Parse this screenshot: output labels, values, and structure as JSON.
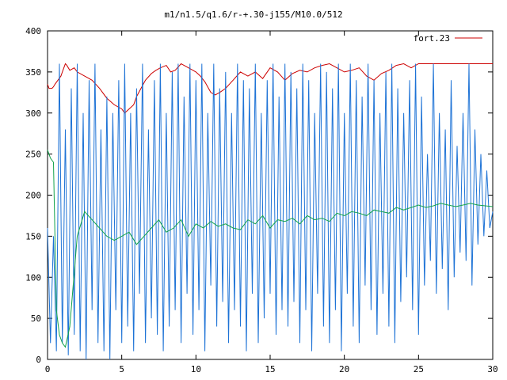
{
  "chart_data": {
    "type": "line",
    "title": "m1/n1.5/q1.6/r-+.30-j155/M10.0/512",
    "xlabel": "",
    "ylabel": "",
    "xlim": [
      0,
      30
    ],
    "ylim": [
      0,
      400
    ],
    "x_ticks": [
      "0",
      "5",
      "10",
      "15",
      "20",
      "25",
      "30"
    ],
    "y_ticks": [
      "0",
      "50",
      "100",
      "150",
      "200",
      "250",
      "300",
      "350",
      "400"
    ],
    "grid": false,
    "legend_position": "top-right",
    "series": [
      {
        "name": "fort.23",
        "color": "#cc0000",
        "x": [
          0,
          0.1,
          0.2,
          0.3,
          0.4,
          0.5,
          0.7,
          0.9,
          1.0,
          1.1,
          1.2,
          1.3,
          1.5,
          1.8,
          2.0,
          2.5,
          3.0,
          3.5,
          4.0,
          4.5,
          5.0,
          5.2,
          5.5,
          5.8,
          6.0,
          6.3,
          6.6,
          7.0,
          7.3,
          7.6,
          8.0,
          8.3,
          8.6,
          9.0,
          9.2,
          9.5,
          9.8,
          10.0,
          10.3,
          10.6,
          11.0,
          11.3,
          11.6,
          12.0,
          12.5,
          13.0,
          13.5,
          14.0,
          14.5,
          15.0,
          15.5,
          16.0,
          16.5,
          17.0,
          17.5,
          18.0,
          18.5,
          19.0,
          19.5,
          20.0,
          20.5,
          21.0,
          21.5,
          22.0,
          22.5,
          23.0,
          23.5,
          24.0,
          24.5,
          25.0,
          25.5,
          26.0,
          26.5,
          27.0,
          27.5,
          28.0,
          28.5,
          29.0,
          29.5,
          30.0
        ],
        "y": [
          335,
          330,
          330,
          330,
          332,
          335,
          340,
          345,
          350,
          355,
          360,
          358,
          352,
          355,
          350,
          345,
          340,
          330,
          318,
          310,
          305,
          300,
          305,
          310,
          320,
          330,
          340,
          348,
          352,
          355,
          358,
          350,
          352,
          360,
          358,
          355,
          352,
          350,
          345,
          338,
          325,
          322,
          325,
          330,
          340,
          350,
          345,
          350,
          342,
          355,
          350,
          340,
          348,
          352,
          350,
          355,
          358,
          360,
          355,
          350,
          352,
          355,
          345,
          340,
          348,
          352,
          358,
          360,
          355,
          360,
          360,
          360,
          360,
          360,
          360,
          360,
          360,
          360,
          360,
          360
        ]
      },
      {
        "name": "",
        "color": "#1e73d6",
        "x": [
          0,
          0.2,
          0.4,
          0.6,
          0.8,
          1.0,
          1.2,
          1.4,
          1.6,
          1.8,
          2.0,
          2.2,
          2.4,
          2.6,
          2.8,
          3.0,
          3.2,
          3.4,
          3.6,
          3.8,
          4.0,
          4.2,
          4.4,
          4.6,
          4.8,
          5.0,
          5.2,
          5.4,
          5.6,
          5.8,
          6.0,
          6.2,
          6.4,
          6.6,
          6.8,
          7.0,
          7.2,
          7.4,
          7.6,
          7.8,
          8.0,
          8.2,
          8.4,
          8.6,
          8.8,
          9.0,
          9.2,
          9.4,
          9.6,
          9.8,
          10.0,
          10.2,
          10.4,
          10.6,
          10.8,
          11.0,
          11.2,
          11.4,
          11.6,
          11.8,
          12.0,
          12.2,
          12.4,
          12.6,
          12.8,
          13.0,
          13.2,
          13.4,
          13.6,
          13.8,
          14.0,
          14.2,
          14.4,
          14.6,
          14.8,
          15.0,
          15.2,
          15.4,
          15.6,
          15.8,
          16.0,
          16.2,
          16.4,
          16.6,
          16.8,
          17.0,
          17.2,
          17.4,
          17.6,
          17.8,
          18.0,
          18.2,
          18.4,
          18.6,
          18.8,
          19.0,
          19.2,
          19.4,
          19.6,
          19.8,
          20.0,
          20.2,
          20.4,
          20.6,
          20.8,
          21.0,
          21.2,
          21.4,
          21.6,
          21.8,
          22.0,
          22.2,
          22.4,
          22.6,
          22.8,
          23.0,
          23.2,
          23.4,
          23.6,
          23.8,
          24.0,
          24.2,
          24.4,
          24.6,
          24.8,
          25.0,
          25.2,
          25.4,
          25.6,
          25.8,
          26.0,
          26.2,
          26.4,
          26.6,
          26.8,
          27.0,
          27.2,
          27.4,
          27.6,
          27.8,
          28.0,
          28.2,
          28.4,
          28.6,
          28.8,
          29.0,
          29.2,
          29.4,
          29.6,
          29.8,
          30.0
        ],
        "y": [
          160,
          20,
          150,
          10,
          360,
          20,
          280,
          5,
          330,
          30,
          360,
          10,
          300,
          0,
          340,
          60,
          360,
          20,
          280,
          10,
          320,
          0,
          300,
          60,
          340,
          20,
          360,
          40,
          300,
          10,
          330,
          80,
          360,
          20,
          280,
          50,
          340,
          30,
          360,
          10,
          300,
          40,
          350,
          60,
          360,
          20,
          320,
          80,
          360,
          30,
          340,
          60,
          360,
          10,
          300,
          90,
          360,
          40,
          330,
          70,
          350,
          20,
          300,
          60,
          360,
          40,
          340,
          10,
          330,
          80,
          360,
          20,
          300,
          50,
          340,
          80,
          360,
          30,
          320,
          60,
          360,
          40,
          350,
          70,
          330,
          20,
          360,
          60,
          340,
          10,
          300,
          80,
          360,
          40,
          350,
          20,
          330,
          60,
          360,
          10,
          300,
          80,
          360,
          40,
          340,
          20,
          320,
          90,
          360,
          60,
          340,
          30,
          300,
          80,
          350,
          40,
          360,
          20,
          330,
          70,
          300,
          100,
          340,
          60,
          360,
          30,
          320,
          90,
          250,
          120,
          360,
          80,
          300,
          110,
          280,
          60,
          340,
          100,
          260,
          130,
          300,
          120,
          360,
          90,
          280,
          140,
          250,
          150,
          230,
          160,
          180
        ]
      },
      {
        "name": "",
        "color": "#11a24a",
        "x": [
          0,
          0.2,
          0.4,
          0.6,
          0.8,
          1.0,
          1.2,
          1.5,
          2.0,
          2.5,
          3.0,
          3.5,
          4.0,
          4.5,
          5.0,
          5.5,
          6.0,
          6.5,
          7.0,
          7.5,
          8.0,
          8.5,
          9.0,
          9.5,
          10.0,
          10.5,
          11.0,
          11.5,
          12.0,
          12.5,
          13.0,
          13.5,
          14.0,
          14.5,
          15.0,
          15.5,
          16.0,
          16.5,
          17.0,
          17.5,
          18.0,
          18.5,
          19.0,
          19.5,
          20.0,
          20.5,
          21.0,
          21.5,
          22.0,
          22.5,
          23.0,
          23.5,
          24.0,
          24.5,
          25.0,
          25.5,
          26.0,
          26.5,
          27.0,
          27.5,
          28.0,
          28.5,
          29.0,
          29.5,
          30.0
        ],
        "y": [
          255,
          245,
          240,
          60,
          30,
          20,
          15,
          40,
          150,
          180,
          170,
          160,
          150,
          145,
          150,
          155,
          140,
          150,
          160,
          170,
          155,
          160,
          170,
          150,
          165,
          160,
          168,
          162,
          165,
          160,
          158,
          170,
          165,
          175,
          160,
          170,
          168,
          172,
          165,
          175,
          170,
          172,
          168,
          178,
          175,
          180,
          178,
          175,
          182,
          180,
          178,
          185,
          182,
          185,
          188,
          185,
          187,
          190,
          188,
          186,
          188,
          190,
          188,
          187,
          186
        ]
      }
    ]
  }
}
